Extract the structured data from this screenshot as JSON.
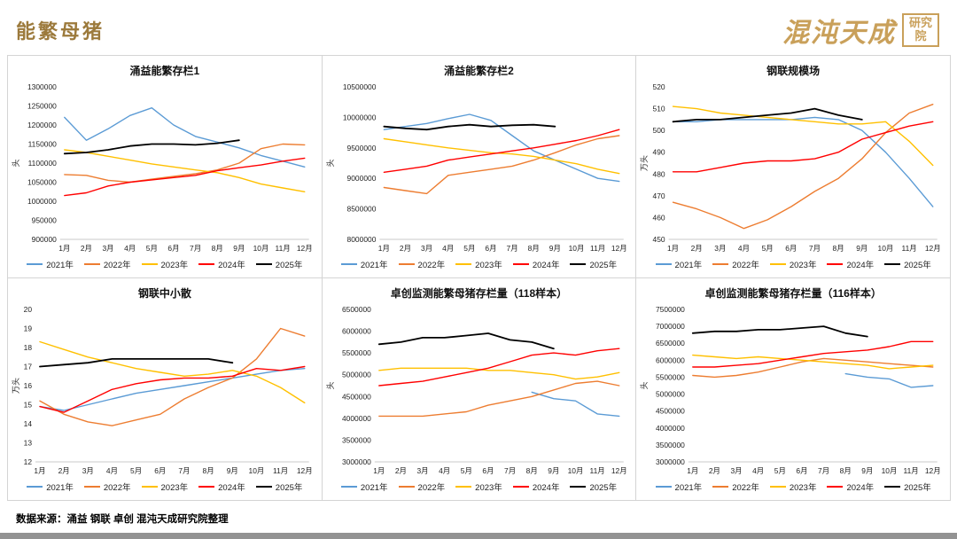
{
  "page": {
    "title": "能繁母猪",
    "logo_text": "混沌天成",
    "logo_seal": "研究院",
    "footer": "数据来源：涌益 钢联 卓创 混沌天成研究院整理",
    "accent_color": "#9c7a3c",
    "logo_color": "#c9a05a"
  },
  "months": [
    "1月",
    "2月",
    "3月",
    "4月",
    "5月",
    "6月",
    "7月",
    "8月",
    "9月",
    "10月",
    "11月",
    "12月"
  ],
  "series_colors": {
    "2021年": "#5B9BD5",
    "2022年": "#ED7D31",
    "2023年": "#FFC000",
    "2024年": "#FF0000",
    "2025年": "#000000"
  },
  "chart_data": [
    {
      "type": "line",
      "title": "涌益能繁存栏1",
      "ylabel": "头",
      "ylim": [
        900000,
        1300000
      ],
      "ystep": 50000,
      "legend_position": "bottom",
      "grid": false,
      "series": [
        {
          "name": "2021年",
          "values": [
            1220000,
            1160000,
            1190000,
            1225000,
            1245000,
            1200000,
            1170000,
            1155000,
            1140000,
            1120000,
            1105000,
            1090000
          ]
        },
        {
          "name": "2022年",
          "values": [
            1070000,
            1068000,
            1055000,
            1050000,
            1058000,
            1065000,
            1072000,
            1082000,
            1100000,
            1138000,
            1150000,
            1148000
          ]
        },
        {
          "name": "2023年",
          "values": [
            1135000,
            1128000,
            1118000,
            1108000,
            1098000,
            1090000,
            1082000,
            1075000,
            1062000,
            1045000,
            1035000,
            1025000
          ]
        },
        {
          "name": "2024年",
          "values": [
            1015000,
            1022000,
            1040000,
            1050000,
            1056000,
            1062000,
            1068000,
            1080000,
            1088000,
            1095000,
            1105000,
            1113000
          ]
        },
        {
          "name": "2025年",
          "values": [
            1125000,
            1128000,
            1135000,
            1145000,
            1150000,
            1150000,
            1148000,
            1152000,
            1160000
          ]
        }
      ]
    },
    {
      "type": "line",
      "title": "涌益能繁存栏2",
      "ylabel": "头",
      "ylim": [
        8000000,
        10500000
      ],
      "ystep": 500000,
      "legend_position": "bottom",
      "grid": false,
      "series": [
        {
          "name": "2021年",
          "values": [
            9800000,
            9850000,
            9900000,
            9980000,
            10050000,
            9950000,
            9700000,
            9450000,
            9300000,
            9150000,
            9000000,
            8950000
          ]
        },
        {
          "name": "2022年",
          "values": [
            8850000,
            8800000,
            8750000,
            9050000,
            9100000,
            9150000,
            9200000,
            9300000,
            9420000,
            9550000,
            9650000,
            9700000
          ]
        },
        {
          "name": "2023年",
          "values": [
            9650000,
            9600000,
            9550000,
            9500000,
            9460000,
            9420000,
            9400000,
            9360000,
            9300000,
            9240000,
            9150000,
            9080000
          ]
        },
        {
          "name": "2024年",
          "values": [
            9100000,
            9150000,
            9200000,
            9300000,
            9350000,
            9400000,
            9450000,
            9500000,
            9560000,
            9620000,
            9700000,
            9800000
          ]
        },
        {
          "name": "2025年",
          "values": [
            9850000,
            9820000,
            9800000,
            9850000,
            9880000,
            9850000,
            9870000,
            9880000,
            9850000
          ]
        }
      ]
    },
    {
      "type": "line",
      "title": "钢联规模场",
      "ylabel": "万头",
      "ylim": [
        450,
        520
      ],
      "ystep": 10,
      "legend_position": "bottom",
      "grid": false,
      "series": [
        {
          "name": "2021年",
          "values": [
            504,
            504,
            505,
            505,
            505,
            505,
            506,
            505,
            500,
            490,
            478,
            465
          ]
        },
        {
          "name": "2022年",
          "values": [
            467,
            464,
            460,
            455,
            459,
            465,
            472,
            478,
            487,
            499,
            508,
            512
          ]
        },
        {
          "name": "2023年",
          "values": [
            511,
            510,
            508,
            507,
            506,
            505,
            504,
            503,
            503,
            504,
            495,
            484
          ]
        },
        {
          "name": "2024年",
          "values": [
            481,
            481,
            483,
            485,
            486,
            486,
            487,
            490,
            496,
            499,
            502,
            504
          ]
        },
        {
          "name": "2025年",
          "values": [
            504,
            505,
            505,
            506,
            507,
            508,
            510,
            507,
            505
          ]
        }
      ]
    },
    {
      "type": "line",
      "title": "钢联中小散",
      "ylabel": "万头",
      "ylim": [
        12,
        20
      ],
      "ystep": 1,
      "legend_position": "bottom",
      "grid": false,
      "series": [
        {
          "name": "2021年",
          "values": [
            14.9,
            14.7,
            15.0,
            15.3,
            15.6,
            15.8,
            16.0,
            16.2,
            16.4,
            16.6,
            16.8,
            16.9
          ]
        },
        {
          "name": "2022年",
          "values": [
            15.2,
            14.5,
            14.1,
            13.9,
            14.2,
            14.5,
            15.3,
            15.9,
            16.4,
            17.4,
            19.0,
            18.6
          ]
        },
        {
          "name": "2023年",
          "values": [
            18.3,
            17.9,
            17.5,
            17.2,
            16.9,
            16.7,
            16.5,
            16.6,
            16.8,
            16.5,
            15.9,
            15.1
          ]
        },
        {
          "name": "2024年",
          "values": [
            14.9,
            14.6,
            15.2,
            15.8,
            16.1,
            16.3,
            16.4,
            16.4,
            16.5,
            16.9,
            16.8,
            17.0
          ]
        },
        {
          "name": "2025年",
          "values": [
            17.0,
            17.1,
            17.2,
            17.4,
            17.4,
            17.4,
            17.4,
            17.4,
            17.2
          ]
        }
      ]
    },
    {
      "type": "line",
      "title": "卓创监测能繁母猪存栏量（118样本）",
      "ylabel": "头",
      "ylim": [
        3000000,
        6500000
      ],
      "ystep": 500000,
      "legend_position": "bottom",
      "grid": false,
      "series": [
        {
          "name": "2021年",
          "values": [
            null,
            null,
            null,
            null,
            null,
            null,
            null,
            4600000,
            4450000,
            4400000,
            4100000,
            4050000
          ]
        },
        {
          "name": "2022年",
          "values": [
            4050000,
            4050000,
            4050000,
            4100000,
            4150000,
            4300000,
            4400000,
            4500000,
            4650000,
            4800000,
            4850000,
            4750000
          ]
        },
        {
          "name": "2023年",
          "values": [
            5100000,
            5150000,
            5150000,
            5150000,
            5150000,
            5100000,
            5100000,
            5050000,
            5000000,
            4900000,
            4950000,
            5050000
          ]
        },
        {
          "name": "2024年",
          "values": [
            4750000,
            4800000,
            4850000,
            4950000,
            5050000,
            5150000,
            5300000,
            5450000,
            5500000,
            5450000,
            5550000,
            5600000
          ]
        },
        {
          "name": "2025年",
          "values": [
            5700000,
            5750000,
            5850000,
            5850000,
            5900000,
            5950000,
            5800000,
            5750000,
            5600000
          ]
        }
      ]
    },
    {
      "type": "line",
      "title": "卓创监测能繁母猪存栏量（116样本）",
      "ylabel": "头",
      "ylim": [
        3000000,
        7500000
      ],
      "ystep": 500000,
      "legend_position": "bottom",
      "grid": false,
      "series": [
        {
          "name": "2021年",
          "values": [
            null,
            null,
            null,
            null,
            null,
            null,
            null,
            5600000,
            5500000,
            5450000,
            5200000,
            5250000
          ]
        },
        {
          "name": "2022年",
          "values": [
            5550000,
            5500000,
            5550000,
            5650000,
            5800000,
            5950000,
            6050000,
            6000000,
            5950000,
            5900000,
            5850000,
            5800000
          ]
        },
        {
          "name": "2023年",
          "values": [
            6150000,
            6100000,
            6050000,
            6100000,
            6050000,
            6000000,
            5950000,
            5900000,
            5850000,
            5750000,
            5800000,
            5850000
          ]
        },
        {
          "name": "2024年",
          "values": [
            5800000,
            5800000,
            5850000,
            5900000,
            6000000,
            6100000,
            6200000,
            6250000,
            6300000,
            6400000,
            6550000,
            6550000
          ]
        },
        {
          "name": "2025年",
          "values": [
            6800000,
            6850000,
            6850000,
            6900000,
            6900000,
            6950000,
            7000000,
            6800000,
            6700000
          ]
        }
      ]
    }
  ]
}
